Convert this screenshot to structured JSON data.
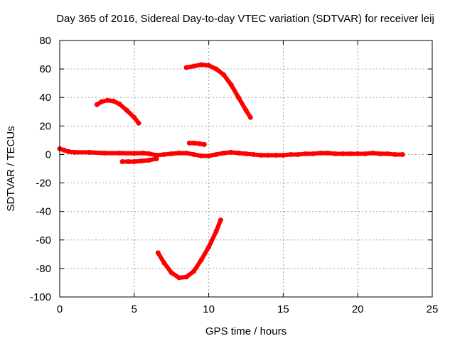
{
  "chart_data": {
    "type": "scatter",
    "title": "Day 365 of 2016, Sidereal Day-to-day VTEC variation (SDTVAR) for receiver leij",
    "xlabel": "GPS time / hours",
    "ylabel": "SDTVAR / TECUs",
    "xlim": [
      0,
      25
    ],
    "ylim": [
      -100,
      80
    ],
    "x_ticks": [
      0,
      5,
      10,
      15,
      20,
      25
    ],
    "y_ticks": [
      -100,
      -80,
      -60,
      -40,
      -20,
      0,
      20,
      40,
      60,
      80
    ],
    "x_tick_labels": [
      "0",
      "5",
      "10",
      "15",
      "20",
      "25"
    ],
    "y_tick_labels": [
      "-100",
      "-80",
      "-60",
      "-40",
      "-20",
      "0",
      "20",
      "40",
      "60",
      "80"
    ],
    "grid": true,
    "legend": "none",
    "marker_color": "#ff0000",
    "series": [
      {
        "points": [
          [
            0,
            4
          ],
          [
            0.3,
            3
          ],
          [
            0.6,
            2
          ],
          [
            1,
            1.5
          ],
          [
            2,
            1.5
          ],
          [
            3,
            1
          ],
          [
            4,
            1
          ],
          [
            5,
            0.8
          ],
          [
            5.6,
            1
          ],
          [
            6,
            0.5
          ],
          [
            6.5,
            -0.5
          ],
          [
            7,
            0
          ],
          [
            7.5,
            0.5
          ],
          [
            8,
            1
          ],
          [
            8.5,
            1
          ],
          [
            9,
            0
          ],
          [
            9.5,
            -1
          ],
          [
            10,
            -1
          ],
          [
            10.5,
            0
          ],
          [
            11,
            1
          ],
          [
            11.5,
            1.5
          ],
          [
            12,
            1
          ],
          [
            12.5,
            0.5
          ],
          [
            13,
            0
          ],
          [
            13.5,
            -0.5
          ],
          [
            14,
            -0.5
          ],
          [
            14.5,
            -0.5
          ],
          [
            15,
            -0.5
          ],
          [
            15.5,
            0
          ],
          [
            16,
            0
          ],
          [
            16.5,
            0.5
          ],
          [
            17,
            0.5
          ],
          [
            17.5,
            1
          ],
          [
            18,
            1
          ],
          [
            18.5,
            0.5
          ],
          [
            19,
            0.5
          ],
          [
            19.5,
            0.5
          ],
          [
            20,
            0.5
          ],
          [
            20.5,
            0.5
          ],
          [
            21,
            1
          ],
          [
            21.5,
            0.5
          ],
          [
            22,
            0.5
          ],
          [
            22.5,
            0
          ],
          [
            23,
            0
          ]
        ]
      },
      {
        "points": [
          [
            4.2,
            -5
          ],
          [
            4.6,
            -5
          ],
          [
            5,
            -5
          ],
          [
            5.5,
            -4.5
          ],
          [
            6,
            -4
          ],
          [
            6.5,
            -3
          ]
        ]
      },
      {
        "points": [
          [
            2.5,
            35
          ],
          [
            2.8,
            37
          ],
          [
            3.2,
            38
          ],
          [
            3.6,
            37.5
          ],
          [
            4,
            35.5
          ],
          [
            4.5,
            31
          ],
          [
            5,
            26
          ],
          [
            5.3,
            22
          ]
        ]
      },
      {
        "points": [
          [
            8.7,
            8
          ],
          [
            9,
            8
          ],
          [
            9.4,
            7.5
          ],
          [
            9.7,
            7
          ]
        ]
      },
      {
        "points": [
          [
            8.5,
            61
          ],
          [
            9,
            62
          ],
          [
            9.5,
            63
          ],
          [
            10,
            62.5
          ],
          [
            10.5,
            60
          ],
          [
            11,
            56
          ],
          [
            11.5,
            49
          ],
          [
            12,
            40
          ],
          [
            12.5,
            31
          ],
          [
            12.8,
            26
          ]
        ]
      },
      {
        "points": [
          [
            6.6,
            -69
          ],
          [
            7,
            -76
          ],
          [
            7.5,
            -83
          ],
          [
            8,
            -86.5
          ],
          [
            8.5,
            -86
          ],
          [
            9,
            -82
          ],
          [
            9.5,
            -74
          ],
          [
            10,
            -65
          ],
          [
            10.5,
            -54
          ],
          [
            10.8,
            -46
          ]
        ]
      }
    ]
  }
}
